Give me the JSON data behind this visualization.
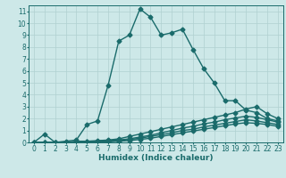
{
  "xlabel": "Humidex (Indice chaleur)",
  "ylabel": "",
  "background_color": "#cde8e8",
  "line_color": "#1a6b6b",
  "xlim": [
    -0.5,
    23.5
  ],
  "ylim": [
    0,
    11.5
  ],
  "xticks": [
    0,
    1,
    2,
    3,
    4,
    5,
    6,
    7,
    8,
    9,
    10,
    11,
    12,
    13,
    14,
    15,
    16,
    17,
    18,
    19,
    20,
    21,
    22,
    23
  ],
  "yticks": [
    0,
    1,
    2,
    3,
    4,
    5,
    6,
    7,
    8,
    9,
    10,
    11
  ],
  "lines": [
    {
      "x": [
        0,
        1,
        2,
        3,
        4,
        5,
        6,
        7,
        8,
        9,
        10,
        11,
        12,
        13,
        14,
        15,
        16,
        17,
        18,
        19,
        20,
        21,
        22,
        23
      ],
      "y": [
        0,
        0.7,
        0,
        0.1,
        0.2,
        1.5,
        1.8,
        4.8,
        8.5,
        9.0,
        11.2,
        10.5,
        9.0,
        9.2,
        9.5,
        7.8,
        6.2,
        5.0,
        3.5,
        3.5,
        2.7,
        2.5,
        2.0,
        1.8
      ],
      "style": "-",
      "marker": "D",
      "markersize": 2.5,
      "linewidth": 1.0
    },
    {
      "x": [
        0,
        1,
        2,
        3,
        4,
        5,
        6,
        7,
        8,
        9,
        10,
        11,
        12,
        13,
        14,
        15,
        16,
        17,
        18,
        19,
        20,
        21,
        22,
        23
      ],
      "y": [
        0,
        0,
        0,
        0,
        0.1,
        0.1,
        0.15,
        0.2,
        0.3,
        0.5,
        0.7,
        0.9,
        1.1,
        1.3,
        1.5,
        1.7,
        1.9,
        2.1,
        2.3,
        2.5,
        2.8,
        3.0,
        2.4,
        2.0
      ],
      "style": "-",
      "marker": "D",
      "markersize": 2.5,
      "linewidth": 1.0
    },
    {
      "x": [
        0,
        1,
        2,
        3,
        4,
        5,
        6,
        7,
        8,
        9,
        10,
        11,
        12,
        13,
        14,
        15,
        16,
        17,
        18,
        19,
        20,
        21,
        22,
        23
      ],
      "y": [
        0,
        0,
        0,
        0,
        0,
        0.05,
        0.1,
        0.15,
        0.2,
        0.3,
        0.45,
        0.6,
        0.8,
        1.0,
        1.2,
        1.35,
        1.55,
        1.7,
        1.9,
        2.05,
        2.2,
        2.1,
        1.9,
        1.7
      ],
      "style": "-",
      "marker": "D",
      "markersize": 2.5,
      "linewidth": 1.0
    },
    {
      "x": [
        0,
        1,
        2,
        3,
        4,
        5,
        6,
        7,
        8,
        9,
        10,
        11,
        12,
        13,
        14,
        15,
        16,
        17,
        18,
        19,
        20,
        21,
        22,
        23
      ],
      "y": [
        0,
        0,
        0,
        0,
        0,
        0,
        0.05,
        0.1,
        0.15,
        0.25,
        0.35,
        0.5,
        0.65,
        0.8,
        1.0,
        1.1,
        1.3,
        1.45,
        1.6,
        1.75,
        1.9,
        1.8,
        1.65,
        1.5
      ],
      "style": "-",
      "marker": "D",
      "markersize": 2.5,
      "linewidth": 1.0
    },
    {
      "x": [
        0,
        1,
        2,
        3,
        4,
        5,
        6,
        7,
        8,
        9,
        10,
        11,
        12,
        13,
        14,
        15,
        16,
        17,
        18,
        19,
        20,
        21,
        22,
        23
      ],
      "y": [
        0,
        0,
        0,
        0,
        0,
        0,
        0,
        0.05,
        0.1,
        0.15,
        0.25,
        0.35,
        0.5,
        0.65,
        0.8,
        0.95,
        1.1,
        1.25,
        1.4,
        1.55,
        1.65,
        1.6,
        1.5,
        1.35
      ],
      "style": "-",
      "marker": "D",
      "markersize": 2.5,
      "linewidth": 1.0
    }
  ],
  "grid_color": "#b0d0d0",
  "title_fontsize": 7,
  "label_fontsize": 6.5,
  "tick_fontsize": 5.5
}
